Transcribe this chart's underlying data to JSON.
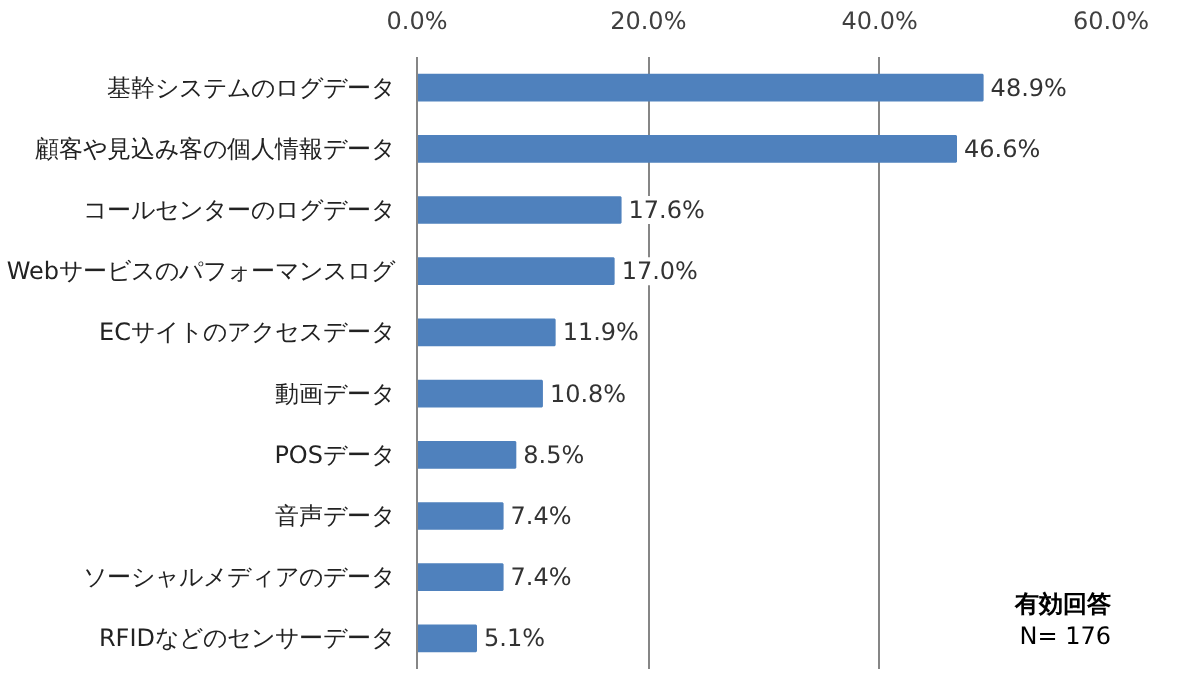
{
  "chart_data": {
    "type": "bar",
    "orientation": "horizontal",
    "categories": [
      "基幹システムのログデータ",
      "顧客や見込み客の個人情報データ",
      "コールセンターのログデータ",
      "Webサービスのパフォーマンスログ",
      "ECサイトのアクセスデータ",
      "動画データ",
      "POSデータ",
      "音声データ",
      "ソーシャルメディアのデータ",
      "RFIDなどのセンサーデータ"
    ],
    "values": [
      48.9,
      46.6,
      17.6,
      17.0,
      11.9,
      10.8,
      8.5,
      7.4,
      7.4,
      5.1
    ],
    "value_labels": [
      "48.9%",
      "46.6%",
      "17.6%",
      "17.0%",
      "11.9%",
      "10.8%",
      "8.5%",
      "7.4%",
      "7.4%",
      "5.1%"
    ],
    "color": "#4f81bd",
    "xlim": [
      0,
      60
    ],
    "xticks": [
      {
        "value": 0,
        "label": "0.0%"
      },
      {
        "value": 20,
        "label": "20.0%"
      },
      {
        "value": 40,
        "label": "40.0%"
      },
      {
        "value": 60,
        "label": "60.0%"
      }
    ],
    "grid": "x",
    "annotations": [
      "有効回答",
      "N= 176"
    ]
  }
}
